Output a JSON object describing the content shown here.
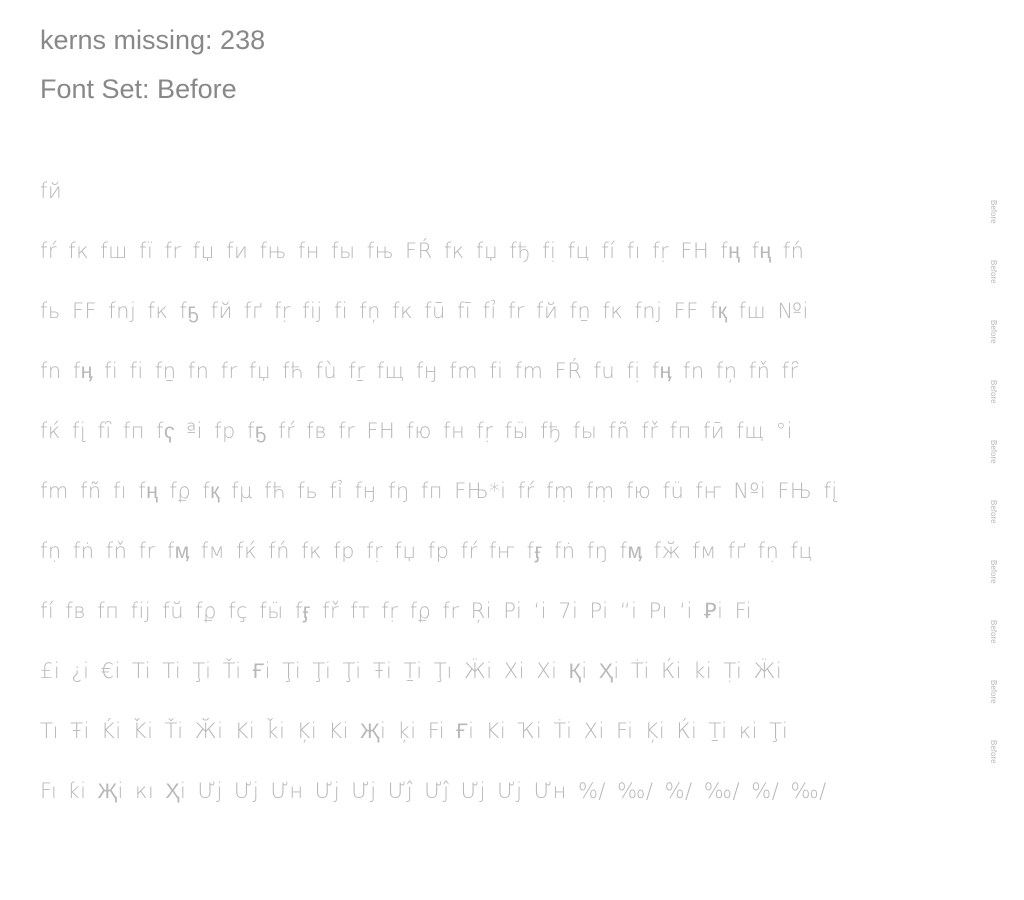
{
  "header": {
    "kerns_missing": "kerns missing: 238",
    "font_set": "Font Set: Before"
  },
  "side_label": "Before",
  "rows": [
    "fй",
    "fŕ fк fш fï fr fџ fи fњ fн fы fњ FŔ fк fџ fђ fị fц fí fı fṛ FH fң fң fń",
    "fь FF fnj fк fҕ fй fґ fṛ fij fi fņ fк fū fī fỉ fr fй fṉ fк fnj FF fқ fш №i",
    "fn fӊ fi fi fṉ fn fr fџ fћ fù fṟ fщ fӈ fm fi fm FŔ fu fị fӊ fn fņ fň fȓ",
    "fќ fį fȋ fп fҁ ªi fр fҕ fŕ fв fr FH fю fн fṛ fӹ fђ fы fñ fř fп fӣ fщ °i",
    "fm fñ fı fң fϼ fқ fµ fћ fь fỉ fӈ fŋ fп FЊ*i fŕ fṃ fṃ fю fü fҥ Nºi FЊ fį",
    "fṇ fṅ fň fr fӎ fм fќ fń fк fр fṛ fџ fр fŕ fҥ fӻ fṅ fŋ fӎ fӂ fм fґ fṇ fц",
    "fí fв fп fij fŭ fϼ fҫ fӹ fӻ fř fт fṛ fϼ fr Ŗi Pi ‘i 7i Pi “i Ρı ‘i Ꝑi Fi",
    "£i ¿i €i Ti Ti Ţi Ťi Ғi Ţi Ţi Ţi Ŧi Ṯi Ţı Ӝi Хi Хi Қi Ҳi Ṫi Ќi ki Ṭi Ӝi",
    "Tı Ŧi Ḱi Ǩi Ťi Ӂi Ki ǩi Ķi Ki Җi ķi Fi Ғi Ki Ҡi Ṫi Хi Fi Ķi Ќi Ṯi кi Ţi",
    "Fı ƙi Җi кı Ҳi Ưj Ưj Ưн Ưj Ưj Ưĵ Ưĵ Ưj Ưj Ưн %/ ‰/ %/ ‰/ %/ ‰/"
  ]
}
